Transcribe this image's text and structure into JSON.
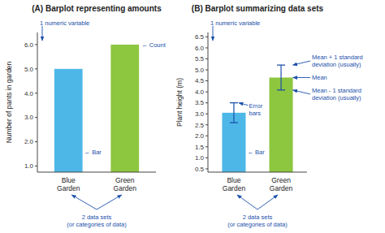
{
  "chart_data": [
    {
      "type": "bar",
      "title": "(A) Barplot representing amounts",
      "categories": [
        "Blue\nGarden",
        "Green\nGarden"
      ],
      "values": [
        5.0,
        6.0
      ],
      "colors": [
        "#4db8e8",
        "#8dc63f"
      ],
      "ylabel": "Number of pants in garden",
      "ylim": [
        0.75,
        6.5
      ],
      "yticks": [
        {
          "value": 1.0,
          "label": "1.0"
        },
        {
          "value": 2.0,
          "label": "2.0"
        },
        {
          "value": 3.0,
          "label": "3.0"
        },
        {
          "value": 4.0,
          "label": "4.0"
        },
        {
          "value": 5.0,
          "label": "5.0"
        },
        {
          "value": 6.0,
          "label": "6.0"
        }
      ],
      "annotations": [
        {
          "text": "1 numeric variable",
          "color": "#1a4faa"
        },
        {
          "text": "← Count",
          "color": "#1a4faa"
        },
        {
          "text": "← Bar",
          "color": "#1a4faa"
        },
        {
          "text": "2 data sets\n(or categories of data)",
          "color": "#1a4faa"
        }
      ]
    },
    {
      "type": "bar",
      "title": "(B) Barplot summarizing data sets",
      "categories": [
        "Blue\nGarden",
        "Green\nGarden"
      ],
      "values": [
        3.05,
        4.65
      ],
      "errors": [
        0.45,
        0.57
      ],
      "colors": [
        "#4db8e8",
        "#8dc63f"
      ],
      "ylabel": "Plant height (m)",
      "ylim": [
        0.35,
        6.7
      ],
      "yticks": [
        0.5,
        {
          "value": 1.0,
          "label": "1.0"
        },
        1.5,
        {
          "value": 2.0,
          "label": "2.0"
        },
        2.5,
        {
          "value": 3.0,
          "label": "3.0"
        },
        3.5,
        {
          "value": 4.0,
          "label": "4.0"
        },
        4.5,
        {
          "value": 5.0,
          "label": "5.0"
        },
        5.5,
        {
          "value": 6.0,
          "label": "6.0"
        },
        6.5
      ],
      "annotations": [
        {
          "text": "1 numeric variable",
          "color": "#1a4faa"
        },
        {
          "text": "Error\nbars",
          "color": "#1a4faa"
        },
        {
          "text": "← Bar",
          "color": "#1a4faa"
        },
        {
          "text": "Mean + 1 standard\ndeviation (usually)",
          "color": "#1a4faa"
        },
        {
          "text": "Mean",
          "color": "#1a4faa"
        },
        {
          "text": "Mean - 1 standard\ndeviation (usually)",
          "color": "#1a4faa"
        },
        {
          "text": "2 data sets\n(or categories of data)",
          "color": "#1a4faa"
        }
      ]
    }
  ]
}
